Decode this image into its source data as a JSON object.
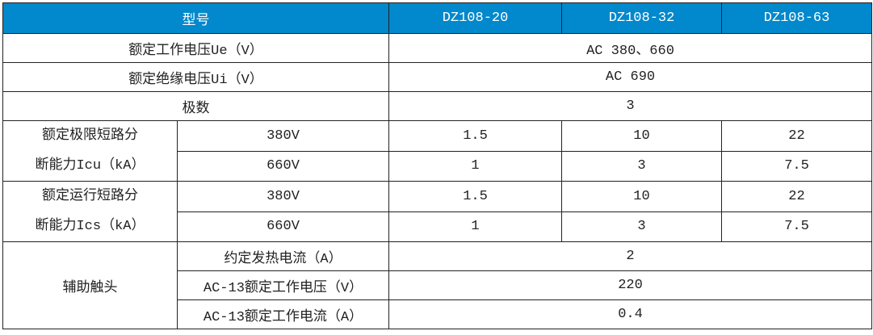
{
  "header": {
    "label": "型号",
    "models": [
      "DZ108-20",
      "DZ108-32",
      "DZ108-63"
    ]
  },
  "colors": {
    "header_bg": "#0288cc",
    "header_text": "#ffffff",
    "border": "#222222"
  },
  "rows": {
    "ue": {
      "label": "额定工作电压Ue（V）",
      "value": "AC 380、660"
    },
    "ui": {
      "label": "额定绝缘电压Ui（V）",
      "value": "AC 690"
    },
    "poles": {
      "label": "极数",
      "value": "3"
    },
    "icu": {
      "label_line1": "额定极限短路分",
      "label_line2": "断能力Icu（kA）",
      "sub": [
        {
          "voltage": "380V",
          "values": [
            "1.5",
            "10",
            "22"
          ]
        },
        {
          "voltage": "660V",
          "values": [
            "1",
            "3",
            "7.5"
          ]
        }
      ]
    },
    "ics": {
      "label_line1": "额定运行短路分",
      "label_line2": "断能力Ics（kA）",
      "sub": [
        {
          "voltage": "380V",
          "values": [
            "1.5",
            "10",
            "22"
          ]
        },
        {
          "voltage": "660V",
          "values": [
            "1",
            "3",
            "7.5"
          ]
        }
      ]
    },
    "aux": {
      "label": "辅助触头",
      "sub": [
        {
          "label": "约定发热电流（A）",
          "value": "2"
        },
        {
          "label": "AC-13额定工作电压（V）",
          "value": "220"
        },
        {
          "label": "AC-13额定工作电流（A）",
          "value": "0.4"
        }
      ]
    }
  }
}
